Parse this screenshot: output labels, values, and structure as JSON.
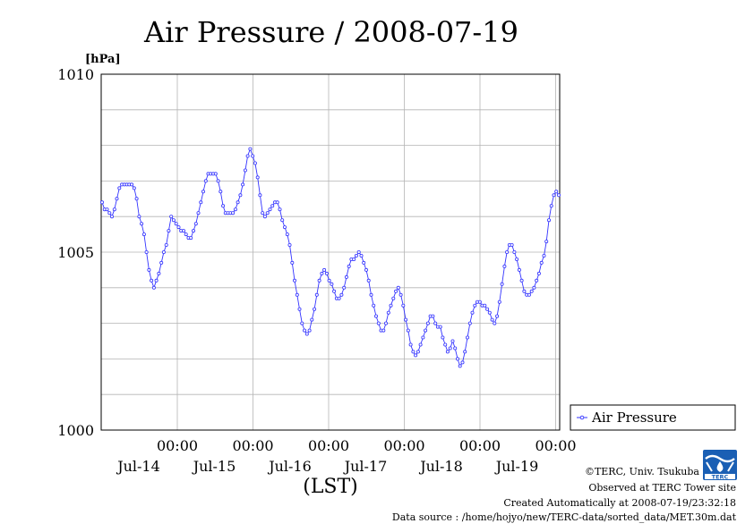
{
  "chart_data": {
    "type": "line",
    "title": "Air Pressure / 2008-07-19",
    "ylabel": "[hPa]",
    "xlabel": "(LST)",
    "ylim": [
      1000,
      1010
    ],
    "yticks": [
      "1000",
      "1005",
      "1010"
    ],
    "xlim_hours": [
      0,
      144
    ],
    "xticks": [
      {
        "time": "00:00",
        "date": "Jul-14"
      },
      {
        "time": "00:00",
        "date": "Jul-15"
      },
      {
        "time": "00:00",
        "date": "Jul-16"
      },
      {
        "time": "00:00",
        "date": "Jul-17"
      },
      {
        "time": "00:00",
        "date": "Jul-18"
      },
      {
        "time": "00:00",
        "date": "Jul-19"
      }
    ],
    "grid": true,
    "legend_position": "right",
    "series": [
      {
        "name": "Air Pressure",
        "color": "#3333ff",
        "values": [
          1006.4,
          1006.2,
          1006.2,
          1006.1,
          1006.0,
          1006.2,
          1006.5,
          1006.8,
          1006.9,
          1006.9,
          1006.9,
          1006.9,
          1006.9,
          1006.8,
          1006.5,
          1006.0,
          1005.8,
          1005.5,
          1005.0,
          1004.5,
          1004.2,
          1004.0,
          1004.2,
          1004.4,
          1004.7,
          1005.0,
          1005.2,
          1005.6,
          1006.0,
          1005.9,
          1005.8,
          1005.7,
          1005.6,
          1005.6,
          1005.5,
          1005.4,
          1005.4,
          1005.6,
          1005.8,
          1006.1,
          1006.4,
          1006.7,
          1007.0,
          1007.2,
          1007.2,
          1007.2,
          1007.2,
          1007.0,
          1006.7,
          1006.3,
          1006.1,
          1006.1,
          1006.1,
          1006.1,
          1006.2,
          1006.4,
          1006.6,
          1006.9,
          1007.3,
          1007.7,
          1007.9,
          1007.7,
          1007.5,
          1007.1,
          1006.6,
          1006.1,
          1006.0,
          1006.1,
          1006.2,
          1006.3,
          1006.4,
          1006.4,
          1006.2,
          1005.9,
          1005.7,
          1005.5,
          1005.2,
          1004.7,
          1004.2,
          1003.8,
          1003.4,
          1003.0,
          1002.8,
          1002.7,
          1002.8,
          1003.1,
          1003.4,
          1003.8,
          1004.2,
          1004.4,
          1004.5,
          1004.4,
          1004.2,
          1004.1,
          1003.9,
          1003.7,
          1003.7,
          1003.8,
          1004.0,
          1004.3,
          1004.6,
          1004.8,
          1004.8,
          1004.9,
          1005.0,
          1004.9,
          1004.7,
          1004.5,
          1004.2,
          1003.8,
          1003.5,
          1003.2,
          1003.0,
          1002.8,
          1002.8,
          1003.0,
          1003.3,
          1003.5,
          1003.7,
          1003.9,
          1004.0,
          1003.8,
          1003.5,
          1003.1,
          1002.8,
          1002.4,
          1002.2,
          1002.1,
          1002.2,
          1002.4,
          1002.6,
          1002.8,
          1003.0,
          1003.2,
          1003.2,
          1003.0,
          1002.9,
          1002.9,
          1002.6,
          1002.4,
          1002.2,
          1002.3,
          1002.5,
          1002.3,
          1002.0,
          1001.8,
          1001.9,
          1002.2,
          1002.6,
          1003.0,
          1003.3,
          1003.5,
          1003.6,
          1003.6,
          1003.5,
          1003.5,
          1003.4,
          1003.3,
          1003.1,
          1003.0,
          1003.2,
          1003.6,
          1004.1,
          1004.6,
          1005.0,
          1005.2,
          1005.2,
          1005.0,
          1004.8,
          1004.5,
          1004.2,
          1003.9,
          1003.8,
          1003.8,
          1003.9,
          1004.0,
          1004.2,
          1004.4,
          1004.7,
          1004.9,
          1005.3,
          1005.9,
          1006.3,
          1006.6,
          1006.7,
          1006.6
        ]
      }
    ]
  },
  "credits": {
    "line1": "©TERC, Univ. Tsukuba",
    "line2": "Observed at TERC Tower site",
    "line3": "Created Automatically at 2008-07-19/23:32:18",
    "line4": "Data source : /home/hojyo/new/TERC-data/sorted_data/MET.30m.dat"
  },
  "logo": {
    "text": "TERC",
    "color": "#1a5fb4"
  }
}
